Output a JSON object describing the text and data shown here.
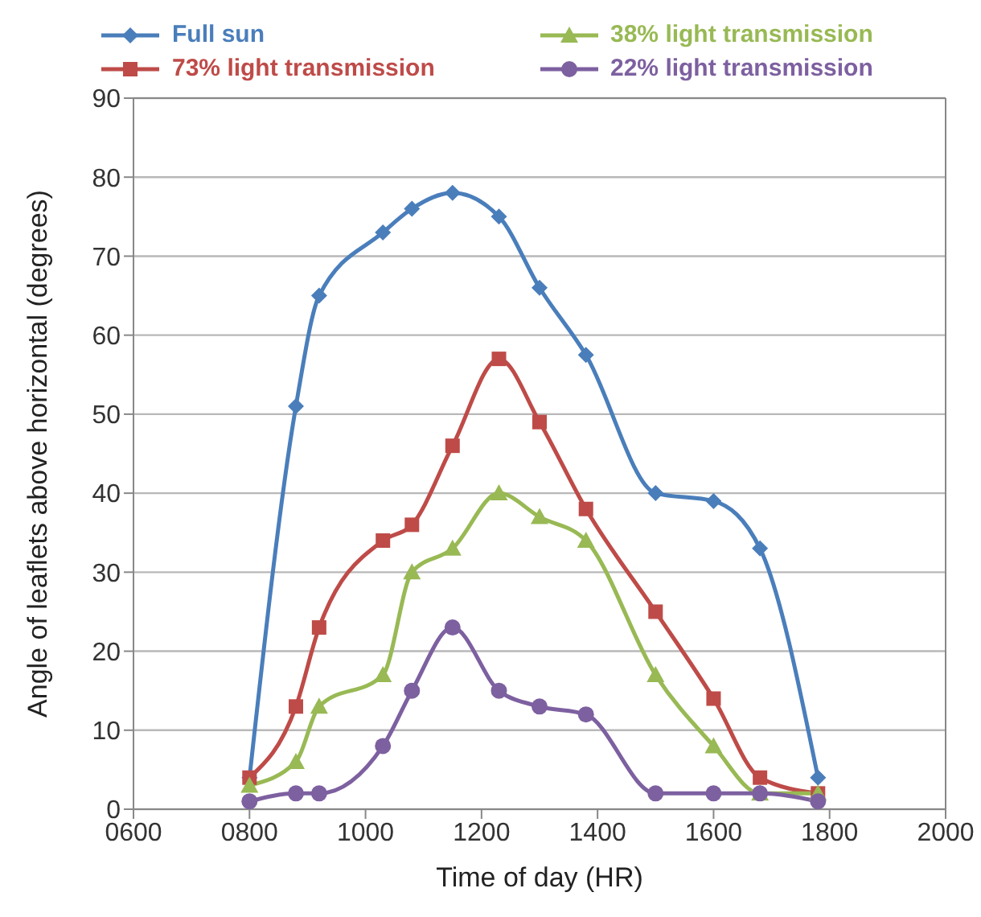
{
  "chart_data": {
    "type": "line",
    "xlabel": "Time of day (HR)",
    "ylabel": "Angle of leaflets above horizontal (degrees)",
    "x": [
      800,
      880,
      920,
      1030,
      1080,
      1150,
      1230,
      1300,
      1380,
      1500,
      1600,
      1680,
      1780
    ],
    "series": [
      {
        "name": "Full sun",
        "color": "#4a7ebb",
        "marker": "diamond",
        "values": [
          4,
          51,
          65,
          73,
          76,
          78,
          75,
          66,
          57.5,
          40,
          39,
          33,
          4
        ]
      },
      {
        "name": "73% light transmission",
        "color": "#be4b48",
        "marker": "square",
        "values": [
          4,
          13,
          23,
          34,
          36,
          46,
          57,
          49,
          38,
          25,
          14,
          4,
          2
        ]
      },
      {
        "name": "38% light transmission",
        "color": "#98b954",
        "marker": "triangle",
        "values": [
          3,
          6,
          13,
          17,
          30,
          33,
          40,
          37,
          34,
          17,
          8,
          2,
          2
        ]
      },
      {
        "name": "22% light transmission",
        "color": "#7d60a0",
        "marker": "circle",
        "values": [
          1,
          2,
          2,
          8,
          15,
          23,
          15,
          13,
          12,
          2,
          2,
          2,
          1
        ]
      }
    ],
    "xlim": [
      600,
      2000
    ],
    "xticks": [
      {
        "value": 600,
        "label": "0600"
      },
      {
        "value": 800,
        "label": "0800"
      },
      1000,
      1200,
      1400,
      1600,
      1800,
      2000
    ],
    "ylim": [
      0,
      90
    ],
    "yticks": [
      0,
      10,
      20,
      30,
      40,
      50,
      60,
      70,
      80,
      90
    ],
    "grid": "y",
    "legend": "top",
    "line_style": "solid"
  }
}
